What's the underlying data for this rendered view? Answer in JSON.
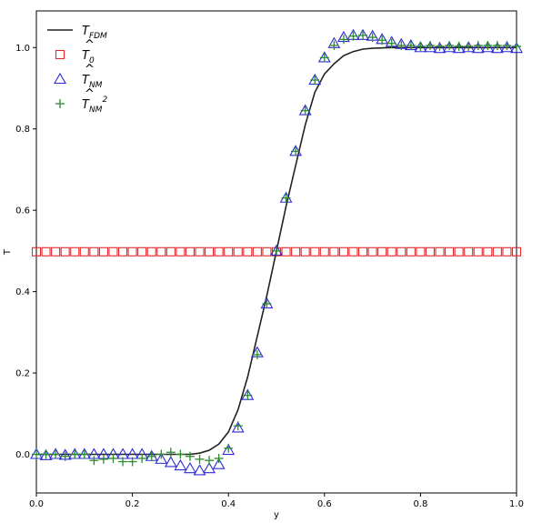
{
  "chart_data": {
    "type": "line",
    "xlabel": "y",
    "ylabel": "T",
    "xlim": [
      0.0,
      1.0
    ],
    "ylim": [
      -0.095,
      1.09
    ],
    "grid": false,
    "legend_placement": "top-left",
    "x_ticks": [
      "0.0",
      "0.2",
      "0.4",
      "0.6",
      "0.8",
      "1.0"
    ],
    "y_ticks": [
      "0.0",
      "0.2",
      "0.4",
      "0.6",
      "0.8",
      "1.0"
    ],
    "legend": [
      {
        "main": "T",
        "sub": "FDM",
        "hat": false,
        "sup": ""
      },
      {
        "main": "T",
        "sub": "0",
        "hat": true,
        "sup": ""
      },
      {
        "main": "T",
        "sub": "NM",
        "hat": true,
        "sup": ""
      },
      {
        "main": "T",
        "sub": "NM",
        "hat": true,
        "sup": "2"
      }
    ],
    "series": [
      {
        "label": "T_FDM",
        "style": "line",
        "color": "#222222",
        "x": [
          0.0,
          0.3,
          0.32,
          0.34,
          0.36,
          0.38,
          0.4,
          0.42,
          0.44,
          0.46,
          0.48,
          0.5,
          0.52,
          0.54,
          0.56,
          0.58,
          0.6,
          0.62,
          0.64,
          0.66,
          0.68,
          0.7,
          0.74,
          0.8,
          0.9,
          1.0
        ],
        "y": [
          0.0,
          0.0,
          0.0,
          0.003,
          0.01,
          0.025,
          0.055,
          0.11,
          0.19,
          0.29,
          0.39,
          0.5,
          0.61,
          0.71,
          0.81,
          0.89,
          0.935,
          0.96,
          0.98,
          0.99,
          0.996,
          0.998,
          1.0,
          1.0,
          1.0,
          1.0
        ]
      },
      {
        "label": "T0_hat",
        "style": "square",
        "color": "#e8262a",
        "x": [
          0.0,
          0.02,
          0.04,
          0.06,
          0.08,
          0.1,
          0.12,
          0.14,
          0.16,
          0.18,
          0.2,
          0.22,
          0.24,
          0.26,
          0.28,
          0.3,
          0.32,
          0.34,
          0.36,
          0.38,
          0.4,
          0.42,
          0.44,
          0.46,
          0.48,
          0.5,
          0.52,
          0.54,
          0.56,
          0.58,
          0.6,
          0.62,
          0.64,
          0.66,
          0.68,
          0.7,
          0.72,
          0.74,
          0.76,
          0.78,
          0.8,
          0.82,
          0.84,
          0.86,
          0.88,
          0.9,
          0.92,
          0.94,
          0.96,
          0.98,
          1.0
        ],
        "y": [
          0.498,
          0.498,
          0.498,
          0.498,
          0.498,
          0.498,
          0.498,
          0.498,
          0.498,
          0.498,
          0.498,
          0.498,
          0.498,
          0.498,
          0.498,
          0.498,
          0.498,
          0.498,
          0.498,
          0.498,
          0.498,
          0.498,
          0.498,
          0.498,
          0.498,
          0.498,
          0.498,
          0.498,
          0.498,
          0.498,
          0.498,
          0.498,
          0.498,
          0.498,
          0.498,
          0.498,
          0.498,
          0.498,
          0.498,
          0.498,
          0.498,
          0.498,
          0.498,
          0.498,
          0.498,
          0.498,
          0.498,
          0.498,
          0.498,
          0.498,
          0.498
        ]
      },
      {
        "label": "TNM_hat",
        "style": "triangle",
        "color": "#2b2bd6",
        "x": [
          0.0,
          0.02,
          0.04,
          0.06,
          0.08,
          0.1,
          0.12,
          0.14,
          0.16,
          0.18,
          0.2,
          0.22,
          0.24,
          0.26,
          0.28,
          0.3,
          0.32,
          0.34,
          0.36,
          0.38,
          0.4,
          0.42,
          0.44,
          0.46,
          0.48,
          0.5,
          0.52,
          0.54,
          0.56,
          0.58,
          0.6,
          0.62,
          0.64,
          0.66,
          0.68,
          0.7,
          0.72,
          0.74,
          0.76,
          0.78,
          0.8,
          0.82,
          0.84,
          0.86,
          0.88,
          0.9,
          0.92,
          0.94,
          0.96,
          0.98,
          1.0
        ],
        "y": [
          0.0,
          -0.003,
          0.0,
          -0.002,
          0.0,
          0.0,
          0.0,
          0.0,
          0.0,
          0.0,
          0.0,
          0.0,
          -0.005,
          -0.012,
          -0.02,
          -0.028,
          -0.035,
          -0.04,
          -0.035,
          -0.025,
          0.01,
          0.065,
          0.145,
          0.25,
          0.37,
          0.5,
          0.63,
          0.745,
          0.845,
          0.92,
          0.975,
          1.01,
          1.025,
          1.03,
          1.03,
          1.028,
          1.02,
          1.013,
          1.008,
          1.005,
          1.0,
          1.0,
          0.998,
          1.0,
          0.998,
          1.0,
          0.998,
          1.0,
          0.998,
          1.0,
          0.998
        ]
      },
      {
        "label": "TNM2_hat",
        "style": "plus",
        "color": "#2a8c2a",
        "x": [
          0.0,
          0.02,
          0.04,
          0.06,
          0.08,
          0.1,
          0.12,
          0.14,
          0.16,
          0.18,
          0.2,
          0.22,
          0.24,
          0.26,
          0.28,
          0.3,
          0.32,
          0.34,
          0.36,
          0.38,
          0.4,
          0.42,
          0.44,
          0.46,
          0.48,
          0.5,
          0.52,
          0.54,
          0.56,
          0.58,
          0.6,
          0.62,
          0.64,
          0.66,
          0.68,
          0.7,
          0.72,
          0.74,
          0.76,
          0.78,
          0.8,
          0.82,
          0.84,
          0.86,
          0.88,
          0.9,
          0.92,
          0.94,
          0.96,
          0.98,
          1.0
        ],
        "y": [
          0.0,
          0.0,
          0.0,
          -0.005,
          0.0,
          0.0,
          -0.015,
          -0.012,
          -0.01,
          -0.018,
          -0.018,
          -0.01,
          -0.005,
          0.0,
          0.005,
          0.0,
          -0.005,
          -0.012,
          -0.015,
          -0.01,
          0.015,
          0.07,
          0.145,
          0.245,
          0.37,
          0.5,
          0.63,
          0.745,
          0.845,
          0.92,
          0.975,
          1.005,
          1.02,
          1.028,
          1.03,
          1.025,
          1.018,
          1.01,
          1.005,
          1.005,
          1.003,
          1.005,
          1.003,
          1.005,
          1.003,
          1.003,
          1.005,
          1.005,
          1.005,
          1.005,
          1.003
        ]
      }
    ]
  }
}
